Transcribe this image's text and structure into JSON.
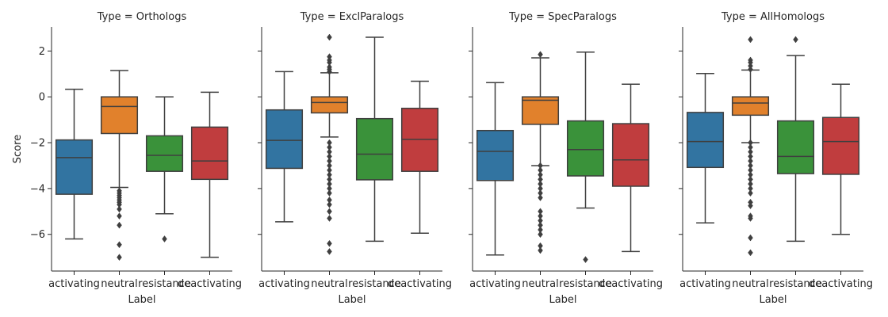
{
  "chart_data": {
    "type": "box",
    "ylabel": "Score",
    "xlabel": "Label",
    "categories": [
      "activating",
      "neutral",
      "resistance",
      "deactivating"
    ],
    "yticks": [
      2,
      0,
      -2,
      -4,
      -6
    ],
    "ylim": [
      -7.6,
      3.05
    ],
    "colors": [
      "#3274a1",
      "#e1812c",
      "#3a923a",
      "#c03d3e"
    ],
    "panels": [
      {
        "title": "Type = Orthologs",
        "boxes": [
          {
            "whislo": -6.2,
            "q1": -4.25,
            "med": -2.65,
            "q3": -1.88,
            "whishi": 0.33,
            "fliers": []
          },
          {
            "whislo": -3.95,
            "q1": -1.6,
            "med": -0.42,
            "q3": 0.0,
            "whishi": 1.15,
            "fliers": [
              -4.1,
              -4.2,
              -4.3,
              -4.4,
              -4.5,
              -4.6,
              -4.7,
              -4.9,
              -5.2,
              -5.6,
              -6.45,
              -7.0
            ]
          },
          {
            "whislo": -5.1,
            "q1": -3.25,
            "med": -2.55,
            "q3": -1.7,
            "whishi": 0.0,
            "fliers": [
              -6.2
            ]
          },
          {
            "whislo": -7.0,
            "q1": -3.6,
            "med": -2.8,
            "q3": -1.32,
            "whishi": 0.2,
            "fliers": []
          }
        ]
      },
      {
        "title": "Type = ExclParalogs",
        "boxes": [
          {
            "whislo": -5.45,
            "q1": -3.12,
            "med": -1.9,
            "q3": -0.57,
            "whishi": 1.1,
            "fliers": []
          },
          {
            "whislo": -1.75,
            "q1": -0.7,
            "med": -0.25,
            "q3": 0.0,
            "whishi": 1.05,
            "fliers": [
              1.1,
              1.2,
              1.3,
              1.5,
              1.6,
              1.75,
              2.6,
              -2.0,
              -2.2,
              -2.4,
              -2.6,
              -2.8,
              -3.0,
              -3.2,
              -3.4,
              -3.6,
              -3.8,
              -4.0,
              -4.2,
              -4.5,
              -4.7,
              -5.0,
              -5.3,
              -6.4,
              -6.75
            ]
          },
          {
            "whislo": -6.3,
            "q1": -3.62,
            "med": -2.5,
            "q3": -0.95,
            "whishi": 2.6,
            "fliers": []
          },
          {
            "whislo": -5.95,
            "q1": -3.25,
            "med": -1.85,
            "q3": -0.5,
            "whishi": 0.68,
            "fliers": []
          }
        ]
      },
      {
        "title": "Type = SpecParalogs",
        "boxes": [
          {
            "whislo": -6.9,
            "q1": -3.65,
            "med": -2.38,
            "q3": -1.47,
            "whishi": 0.62,
            "fliers": []
          },
          {
            "whislo": -3.0,
            "q1": -1.2,
            "med": -0.15,
            "q3": 0.0,
            "whishi": 1.7,
            "fliers": [
              1.85,
              -3.0,
              -3.2,
              -3.4,
              -3.6,
              -3.8,
              -4.0,
              -4.2,
              -4.4,
              -5.0,
              -5.2,
              -5.4,
              -5.6,
              -5.8,
              -6.0,
              -6.5,
              -6.7
            ]
          },
          {
            "whislo": -4.85,
            "q1": -3.45,
            "med": -2.3,
            "q3": -1.05,
            "whishi": 1.95,
            "fliers": [
              -7.1
            ]
          },
          {
            "whislo": -6.75,
            "q1": -3.9,
            "med": -2.75,
            "q3": -1.17,
            "whishi": 0.55,
            "fliers": []
          }
        ]
      },
      {
        "title": "Type = AllHomologs",
        "boxes": [
          {
            "whislo": -5.5,
            "q1": -3.08,
            "med": -1.95,
            "q3": -0.68,
            "whishi": 1.02,
            "fliers": []
          },
          {
            "whislo": -2.0,
            "q1": -0.8,
            "med": -0.27,
            "q3": 0.0,
            "whishi": 1.17,
            "fliers": [
              1.2,
              1.35,
              1.5,
              1.6,
              2.5,
              -2.0,
              -2.2,
              -2.4,
              -2.6,
              -2.8,
              -3.0,
              -3.2,
              -3.4,
              -3.6,
              -3.8,
              -4.0,
              -4.2,
              -4.6,
              -4.75,
              -5.2,
              -5.3,
              -6.15,
              -6.8
            ]
          },
          {
            "whislo": -6.3,
            "q1": -3.35,
            "med": -2.6,
            "q3": -1.05,
            "whishi": 1.8,
            "fliers": [
              2.5
            ]
          },
          {
            "whislo": -6.0,
            "q1": -3.38,
            "med": -1.95,
            "q3": -0.9,
            "whishi": 0.55,
            "fliers": []
          }
        ]
      }
    ]
  }
}
